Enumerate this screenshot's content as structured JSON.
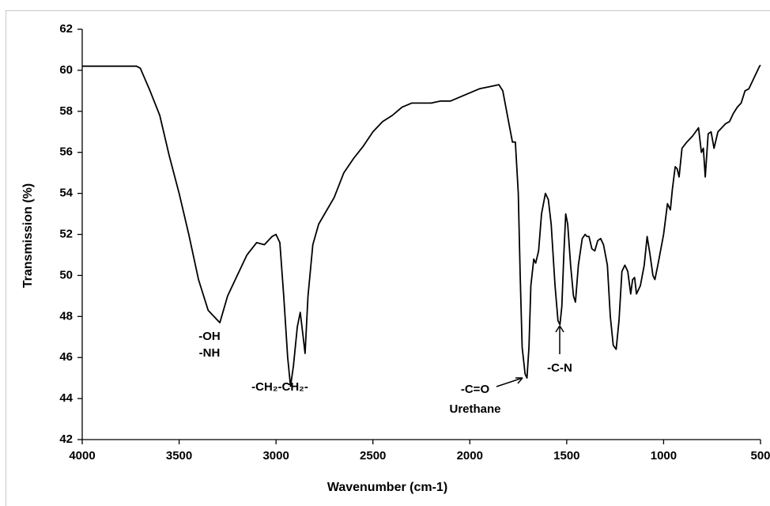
{
  "chart_data": {
    "type": "line",
    "x_label": "Wavenumber (cm-1)",
    "y_label": "Transmission (%)",
    "xlim": [
      4000,
      500
    ],
    "xticks": [
      4000,
      3500,
      3000,
      2500,
      2000,
      1500,
      1000,
      500
    ],
    "ylim": [
      42,
      62
    ],
    "yticks": [
      42,
      44,
      46,
      48,
      50,
      52,
      54,
      56,
      58,
      60,
      62
    ],
    "color": "#000000",
    "annotations": [
      "-OH",
      "-NH",
      "-CH₂-CH₂-",
      "-C=O",
      "Urethane",
      "-C-N"
    ],
    "x": [
      4000,
      3900,
      3800,
      3720,
      3700,
      3650,
      3600,
      3550,
      3500,
      3450,
      3400,
      3350,
      3310,
      3290,
      3250,
      3200,
      3150,
      3100,
      3060,
      3020,
      3000,
      2980,
      2960,
      2940,
      2925,
      2910,
      2890,
      2875,
      2860,
      2850,
      2835,
      2810,
      2780,
      2700,
      2650,
      2600,
      2550,
      2500,
      2450,
      2400,
      2350,
      2300,
      2200,
      2150,
      2100,
      2000,
      1950,
      1900,
      1850,
      1830,
      1800,
      1780,
      1765,
      1750,
      1740,
      1730,
      1715,
      1705,
      1695,
      1685,
      1670,
      1660,
      1645,
      1630,
      1610,
      1595,
      1580,
      1560,
      1545,
      1535,
      1525,
      1515,
      1505,
      1495,
      1480,
      1465,
      1455,
      1440,
      1420,
      1405,
      1395,
      1385,
      1370,
      1355,
      1340,
      1325,
      1310,
      1290,
      1275,
      1260,
      1245,
      1230,
      1215,
      1200,
      1185,
      1170,
      1160,
      1150,
      1140,
      1120,
      1100,
      1085,
      1070,
      1055,
      1045,
      1030,
      1000,
      980,
      965,
      955,
      940,
      930,
      920,
      905,
      880,
      850,
      820,
      805,
      795,
      785,
      770,
      755,
      740,
      720,
      700,
      680,
      660,
      640,
      620,
      600,
      580,
      560,
      540,
      520,
      505,
      500
    ],
    "values": [
      60.2,
      60.2,
      60.2,
      60.2,
      60.1,
      59.0,
      57.8,
      55.8,
      54.0,
      52.0,
      49.8,
      48.3,
      47.9,
      47.7,
      49.0,
      50.0,
      51.0,
      51.6,
      51.5,
      51.9,
      52.0,
      51.6,
      49.0,
      46.0,
      44.6,
      45.6,
      47.5,
      48.2,
      47.0,
      46.2,
      49.0,
      51.5,
      52.5,
      53.8,
      55.0,
      55.7,
      56.3,
      57.0,
      57.5,
      57.8,
      58.2,
      58.4,
      58.4,
      58.5,
      58.5,
      58.9,
      59.1,
      59.2,
      59.3,
      59.0,
      57.5,
      56.5,
      56.5,
      54.0,
      50.0,
      46.5,
      45.2,
      45.0,
      46.5,
      49.5,
      50.8,
      50.6,
      51.2,
      53.0,
      54.0,
      53.7,
      52.5,
      49.5,
      47.8,
      47.6,
      48.5,
      51.0,
      53.0,
      52.5,
      50.5,
      49.0,
      48.7,
      50.5,
      51.8,
      52.0,
      51.9,
      51.9,
      51.3,
      51.2,
      51.7,
      51.8,
      51.5,
      50.5,
      48.0,
      46.6,
      46.4,
      47.8,
      50.2,
      50.5,
      50.2,
      49.1,
      49.8,
      49.9,
      49.1,
      49.5,
      50.5,
      51.9,
      51.0,
      50.0,
      49.8,
      50.5,
      52.0,
      53.5,
      53.2,
      54.2,
      55.3,
      55.2,
      54.8,
      56.2,
      56.5,
      56.8,
      57.2,
      56.0,
      56.2,
      54.8,
      56.9,
      57.0,
      56.2,
      57.0,
      57.2,
      57.4,
      57.5,
      57.9,
      58.2,
      58.4,
      59.0,
      59.1,
      59.5,
      59.9,
      60.2,
      60.25
    ]
  }
}
